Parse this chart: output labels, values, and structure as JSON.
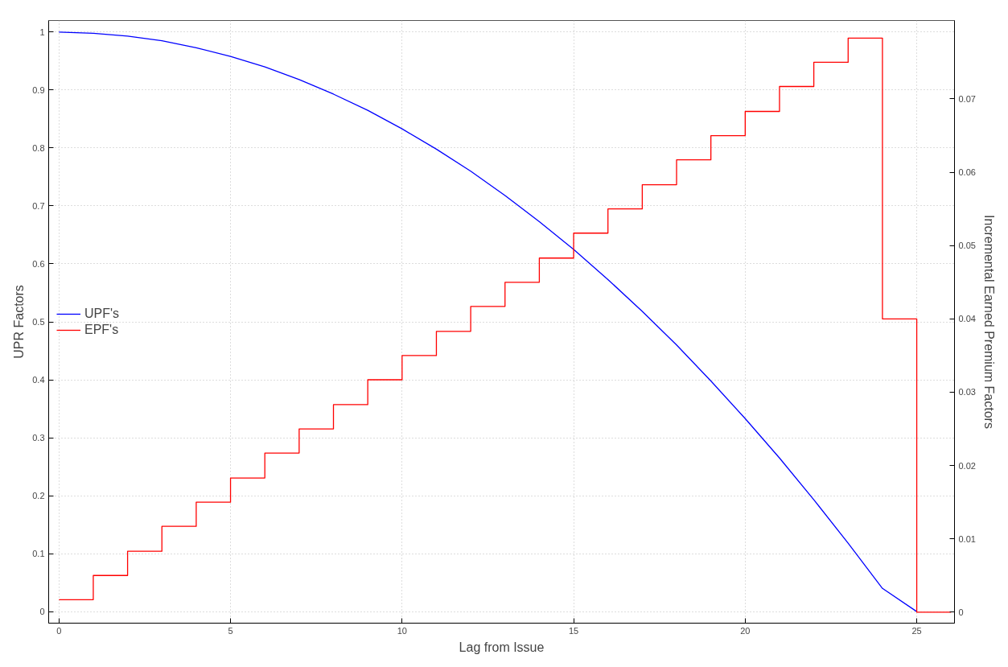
{
  "chart_data": {
    "type": "line",
    "xlabel": "Lag from Issue",
    "ylabel": "UPR Factors",
    "y2label": "Incremental Earned Premium Factors",
    "xlim": [
      -0.3,
      26.1
    ],
    "xticks": [
      0,
      5,
      10,
      15,
      20,
      25
    ],
    "ylim": [
      -0.02,
      1.02
    ],
    "yticks": [
      0,
      0.1,
      0.2,
      0.3,
      0.4,
      0.5,
      0.6,
      0.7,
      0.8,
      0.9,
      1
    ],
    "y2lim": [
      -0.0015,
      0.0807
    ],
    "y2ticks": [
      0,
      0.01,
      0.02,
      0.03,
      0.04,
      0.05,
      0.06,
      0.07
    ],
    "grid": true,
    "legend": "left",
    "line_style": "solid",
    "marker": "none",
    "series": [
      {
        "name": "UPF's",
        "color": "#0000ff",
        "x": [
          0,
          1,
          2,
          3,
          4,
          5,
          6,
          7,
          8,
          9,
          10,
          11,
          12,
          13,
          14,
          15,
          16,
          17,
          18,
          19,
          20,
          21,
          22,
          23,
          24,
          25
        ],
        "values": [
          1,
          0.998,
          0.993,
          0.985,
          0.973,
          0.958,
          0.94,
          0.918,
          0.893,
          0.865,
          0.833,
          0.798,
          0.76,
          0.718,
          0.673,
          0.625,
          0.573,
          0.518,
          0.46,
          0.398,
          0.333,
          0.265,
          0.193,
          0.118,
          0.04,
          0
        ]
      },
      {
        "name": "EPF's",
        "color": "#ff0000",
        "type": "step",
        "axis": "y2",
        "x": [
          0,
          1,
          2,
          3,
          4,
          5,
          6,
          7,
          8,
          9,
          10,
          11,
          12,
          13,
          14,
          15,
          16,
          17,
          18,
          19,
          20,
          21,
          22,
          23,
          24,
          25,
          26
        ],
        "values": [
          0.0017,
          0.005,
          0.0083,
          0.0117,
          0.015,
          0.0183,
          0.0217,
          0.025,
          0.0283,
          0.0317,
          0.035,
          0.0383,
          0.0417,
          0.045,
          0.0483,
          0.0517,
          0.055,
          0.0583,
          0.0617,
          0.065,
          0.0683,
          0.0717,
          0.075,
          0.0783,
          0.04,
          0,
          0
        ]
      }
    ]
  }
}
